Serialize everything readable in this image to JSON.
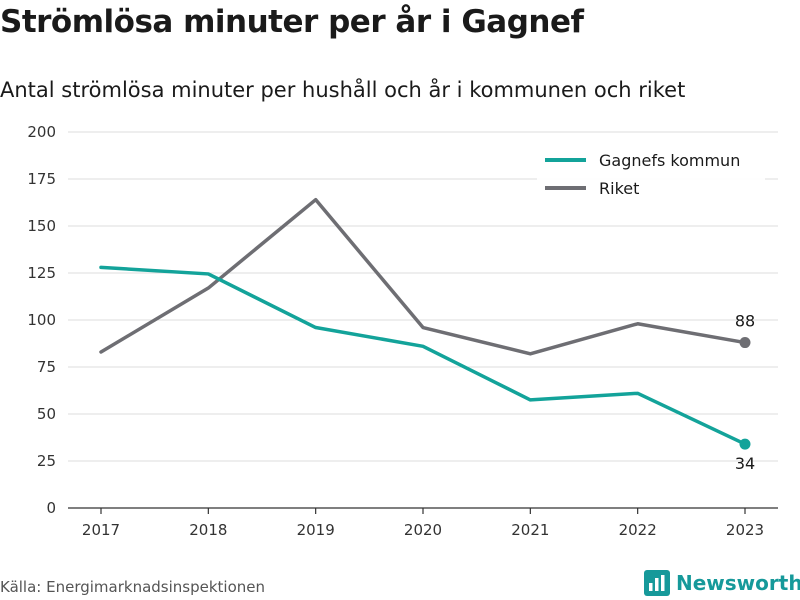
{
  "title": "Strömlösa minuter per år i Gagnef",
  "subtitle": "Antal strömlösa minuter per hushåll och år i kommunen och riket",
  "source": "Källa: Energimarknadsinspektionen",
  "brand": {
    "name": "Newsworthy",
    "icon": "bar-chart-logo-icon",
    "color": "#16999a"
  },
  "chart_data": {
    "type": "line",
    "x": [
      "2017",
      "2018",
      "2019",
      "2020",
      "2021",
      "2022",
      "2023"
    ],
    "series": [
      {
        "name": "Gagnefs kommun",
        "color": "#13a39a",
        "values": [
          128,
          124.5,
          96,
          86,
          57.5,
          61,
          34
        ],
        "end_label": "34"
      },
      {
        "name": "Riket",
        "color": "#6e6e73",
        "values": [
          83,
          117,
          164,
          96,
          82,
          98,
          88
        ],
        "end_label": "88"
      }
    ],
    "ylim": [
      0,
      200
    ],
    "yticks": [
      "0",
      "25",
      "50",
      "75",
      "100",
      "125",
      "150",
      "175",
      "200"
    ],
    "grid": true,
    "legend": "top-right",
    "xlabel": "",
    "ylabel": ""
  }
}
